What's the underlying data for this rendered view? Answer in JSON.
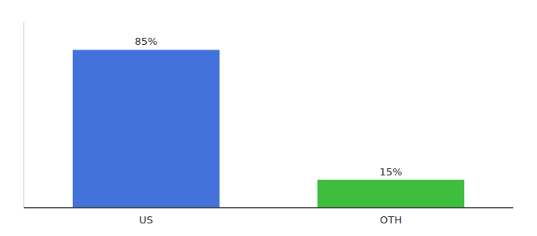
{
  "chart_data": {
    "type": "bar",
    "categories": [
      "US",
      "OTH"
    ],
    "values": [
      85,
      15
    ],
    "colors": [
      "#4472db",
      "#3dbf3d"
    ],
    "data_labels": true,
    "value_labels": [
      "85%",
      "15%"
    ],
    "ylim": [
      0,
      100
    ],
    "tick_labels": "x"
  }
}
